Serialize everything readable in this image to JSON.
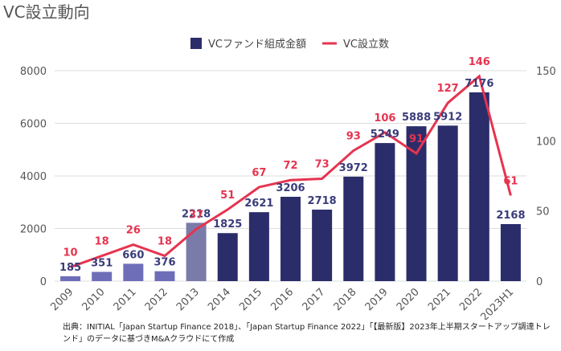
{
  "chart_data": {
    "type": "bar-line",
    "title": "VC設立動向",
    "categories": [
      "2009",
      "2010",
      "2011",
      "2012",
      "2013",
      "2014",
      "2015",
      "2016",
      "2017",
      "2018",
      "2019",
      "2020",
      "2021",
      "2022",
      "2023H1"
    ],
    "series": [
      {
        "name": "VCファンド組成金額",
        "type": "bar",
        "color": "#2b2d6a",
        "colors": [
          "#6e6eb8",
          "#6e6eb8",
          "#6e6eb8",
          "#6e6eb8",
          "#7b7baa",
          "#2b2d6a",
          "#2b2d6a",
          "#2b2d6a",
          "#2b2d6a",
          "#2b2d6a",
          "#2b2d6a",
          "#2b2d6a",
          "#2b2d6a",
          "#2b2d6a",
          "#2b2d6a"
        ],
        "values": [
          185,
          351,
          660,
          376,
          2218,
          1825,
          2621,
          3206,
          2718,
          3972,
          5249,
          5888,
          5912,
          7176,
          2168
        ]
      },
      {
        "name": "VC設立数",
        "type": "line",
        "axis": "y2",
        "color": "#e6344f",
        "values": [
          10,
          18,
          26,
          18,
          37,
          51,
          67,
          72,
          73,
          93,
          106,
          91,
          127,
          146,
          61
        ]
      }
    ],
    "ylim": [
      0,
      8000
    ],
    "yticks": [
      0,
      2000,
      4000,
      6000,
      8000
    ],
    "y2lim": [
      0,
      150
    ],
    "y2ticks": [
      0,
      50,
      100,
      150
    ],
    "grid": true,
    "note": "出典：INITIAL「Japan Startup Finance 2018」、「Japan Startup Finance 2022」「【最新版】2023年上半期スタートアップ調達トレンド」のデータに基づきM&Aクラウドにて作成"
  }
}
